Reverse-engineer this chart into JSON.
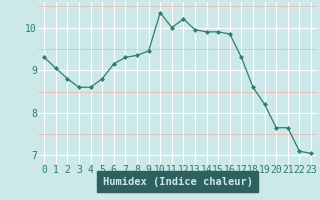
{
  "x": [
    0,
    1,
    2,
    3,
    4,
    5,
    6,
    7,
    8,
    9,
    10,
    11,
    12,
    13,
    14,
    15,
    16,
    17,
    18,
    19,
    20,
    21,
    22,
    23
  ],
  "y": [
    9.3,
    9.05,
    8.8,
    8.6,
    8.6,
    8.8,
    9.15,
    9.3,
    9.35,
    9.45,
    10.35,
    10.0,
    10.2,
    9.95,
    9.9,
    9.9,
    9.85,
    9.3,
    8.6,
    8.2,
    7.65,
    7.65,
    7.1,
    7.05
  ],
  "xlabel": "Humidex (Indice chaleur)",
  "ylim": [
    6.8,
    10.6
  ],
  "xlim": [
    -0.5,
    23.5
  ],
  "yticks": [
    7,
    8,
    9,
    10
  ],
  "xticks": [
    0,
    1,
    2,
    3,
    4,
    5,
    6,
    7,
    8,
    9,
    10,
    11,
    12,
    13,
    14,
    15,
    16,
    17,
    18,
    19,
    20,
    21,
    22,
    23
  ],
  "line_color": "#2e7d6e",
  "marker": "D",
  "marker_size": 2.0,
  "bg_color": "#cce8e8",
  "grid_major_color": "#ffffff",
  "grid_minor_color": "#f0b0b0",
  "xlabel_bg": "#2e6060",
  "xlabel_color": "#cce8e8",
  "xlabel_fontsize": 7.5,
  "tick_fontsize": 7.0,
  "line_width": 0.9
}
